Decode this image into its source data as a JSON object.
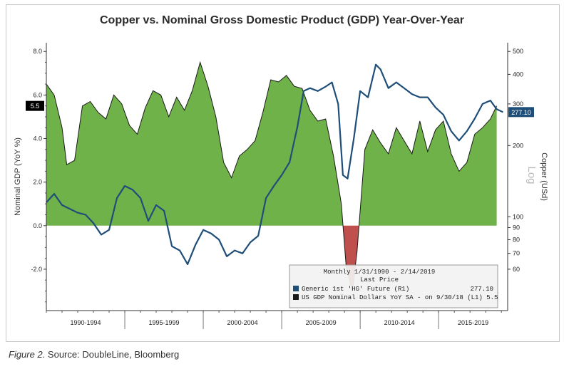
{
  "figure": {
    "title": "Copper vs. Nominal Gross Domestic Product (GDP) Year-Over-Year",
    "caption_prefix": "Figure 2.",
    "caption_text": " Source: DoubleLine, Bloomberg"
  },
  "colors": {
    "gdp_fill": "#6fb24a",
    "gdp_negative_fill": "#c0504d",
    "copper_line": "#1f4e79",
    "gdp_line": "#1a1a1a"
  },
  "chart_data": {
    "type": "area",
    "title": "Copper vs. Nominal Gross Domestic Product (GDP) Year-Over-Year",
    "ylabel": "Nominal GDP (YoY %)",
    "y2label": "Copper (USd)",
    "y2_scale_label": "Log",
    "ylim": [
      -3.9,
      8.4
    ],
    "y_ticks": [
      "8.0",
      "6.0",
      "4.0",
      "2.0",
      "0.0",
      "-2.0"
    ],
    "y2_ticks": [
      "500",
      "400",
      "300",
      "200",
      "100",
      "90",
      "80",
      "70",
      "60"
    ],
    "categories": [
      "1990-1994",
      "1995-1999",
      "2000-2004",
      "2005-2009",
      "2010-2014",
      "2015-2019"
    ],
    "last_value_gdp": "5.5",
    "last_value_copper": "277.10",
    "legend": {
      "header1": "Monthly 1/31/1990 - 2/14/2019",
      "header2": "Last Price",
      "items": [
        {
          "name": "Generic 1st 'HG' Future  (R1)",
          "value": "277.10"
        },
        {
          "name": "US GDP Nominal Dollars YoY SA -  on 9/30/18  (L1) 5.5",
          "value": ""
        }
      ]
    },
    "series": [
      {
        "name": "US GDP Nominal Dollars YoY SA",
        "axis": "left",
        "x": [
          1990.0,
          1990.5,
          1991.0,
          1991.3,
          1991.8,
          1992.3,
          1992.8,
          1993.3,
          1993.8,
          1994.3,
          1994.8,
          1995.3,
          1995.8,
          1996.3,
          1996.8,
          1997.3,
          1997.8,
          1998.3,
          1998.8,
          1999.3,
          1999.8,
          2000.3,
          2000.8,
          2001.3,
          2001.8,
          2002.3,
          2002.8,
          2003.3,
          2003.8,
          2004.3,
          2004.8,
          2005.3,
          2005.8,
          2006.3,
          2006.8,
          2007.3,
          2007.8,
          2008.3,
          2008.8,
          2009.1,
          2009.5,
          2009.8,
          2010.3,
          2010.8,
          2011.3,
          2011.8,
          2012.3,
          2012.8,
          2013.3,
          2013.8,
          2014.3,
          2014.8,
          2015.3,
          2015.8,
          2016.3,
          2016.8,
          2017.3,
          2017.8,
          2018.3,
          2018.7
        ],
        "values": [
          6.5,
          6.0,
          4.5,
          2.8,
          3.0,
          5.5,
          5.7,
          5.2,
          4.9,
          6.0,
          5.6,
          4.6,
          4.2,
          5.4,
          6.2,
          6.0,
          5.0,
          5.9,
          5.3,
          6.2,
          7.5,
          6.4,
          5.0,
          2.9,
          2.2,
          3.2,
          3.5,
          3.9,
          5.2,
          6.7,
          6.6,
          6.9,
          6.4,
          6.3,
          5.3,
          4.8,
          4.9,
          3.2,
          1.0,
          -1.8,
          -3.0,
          -1.2,
          3.5,
          4.4,
          3.8,
          3.3,
          4.5,
          3.9,
          3.3,
          4.8,
          3.4,
          4.4,
          4.8,
          3.3,
          2.5,
          2.9,
          4.2,
          4.5,
          4.9,
          5.5
        ]
      },
      {
        "name": "Generic 1st 'HG' Future",
        "axis": "right",
        "x": [
          1990.0,
          1990.5,
          1991.0,
          1991.5,
          1992.0,
          1992.5,
          1993.0,
          1993.5,
          1994.0,
          1994.5,
          1995.0,
          1995.5,
          1996.0,
          1996.5,
          1997.0,
          1997.5,
          1998.0,
          1998.5,
          1999.0,
          1999.5,
          2000.0,
          2000.5,
          2001.0,
          2001.5,
          2002.0,
          2002.5,
          2003.0,
          2003.5,
          2004.0,
          2004.5,
          2005.0,
          2005.5,
          2006.0,
          2006.4,
          2006.8,
          2007.3,
          2007.8,
          2008.2,
          2008.6,
          2008.9,
          2009.2,
          2009.6,
          2010.0,
          2010.5,
          2011.0,
          2011.3,
          2011.8,
          2012.3,
          2012.8,
          2013.3,
          2013.8,
          2014.3,
          2014.8,
          2015.3,
          2015.8,
          2016.3,
          2016.8,
          2017.3,
          2017.8,
          2018.3,
          2018.7,
          2019.1
        ],
        "values": [
          115,
          125,
          112,
          108,
          104,
          102,
          94,
          84,
          88,
          120,
          135,
          130,
          120,
          96,
          112,
          106,
          75,
          72,
          63,
          76,
          88,
          85,
          80,
          68,
          72,
          70,
          78,
          83,
          120,
          135,
          150,
          170,
          240,
          340,
          350,
          340,
          355,
          370,
          300,
          150,
          145,
          215,
          340,
          320,
          440,
          420,
          350,
          370,
          350,
          330,
          320,
          320,
          290,
          270,
          230,
          210,
          230,
          260,
          300,
          310,
          285,
          277
        ]
      }
    ]
  }
}
